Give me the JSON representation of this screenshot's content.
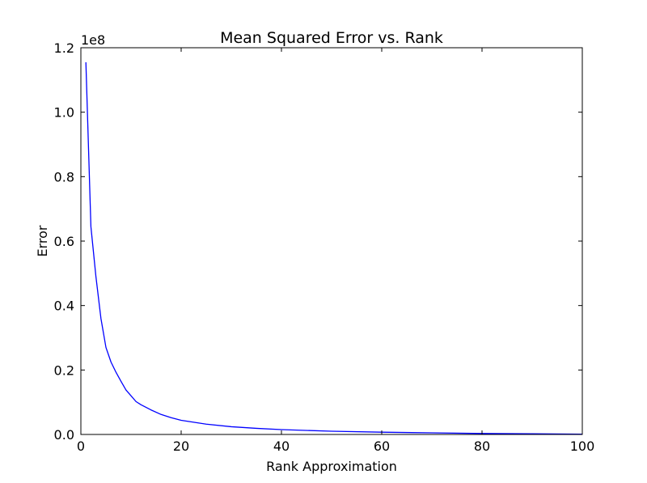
{
  "chart_data": {
    "type": "line",
    "title": "Mean Squared Error vs. Rank",
    "xlabel": "Rank Approximation",
    "ylabel": "Error",
    "y_offset_label": "1e8",
    "xlim": [
      0,
      100
    ],
    "ylim": [
      0.0,
      1.2
    ],
    "x_ticks": [
      0,
      20,
      40,
      60,
      80,
      100
    ],
    "x_tick_labels": [
      "0",
      "20",
      "40",
      "60",
      "80",
      "100"
    ],
    "y_ticks": [
      0.0,
      0.2,
      0.4,
      0.6,
      0.8,
      1.0,
      1.2
    ],
    "y_tick_labels": [
      "0.0",
      "0.2",
      "0.4",
      "0.6",
      "0.8",
      "1.0",
      "1.2"
    ],
    "grid": false,
    "legend": "none",
    "series": [
      {
        "color": "#0000ff",
        "x": [
          1,
          2,
          3,
          4,
          5,
          6,
          7,
          8,
          9,
          10,
          11,
          12,
          14,
          16,
          18,
          20,
          25,
          30,
          35,
          40,
          50,
          60,
          70,
          80,
          90,
          100
        ],
        "y": [
          1.155,
          0.645,
          0.49,
          0.36,
          0.27,
          0.225,
          0.193,
          0.165,
          0.138,
          0.12,
          0.102,
          0.092,
          0.076,
          0.062,
          0.052,
          0.044,
          0.032,
          0.024,
          0.019,
          0.015,
          0.01,
          0.007,
          0.005,
          0.003,
          0.002,
          0.001
        ]
      }
    ]
  }
}
